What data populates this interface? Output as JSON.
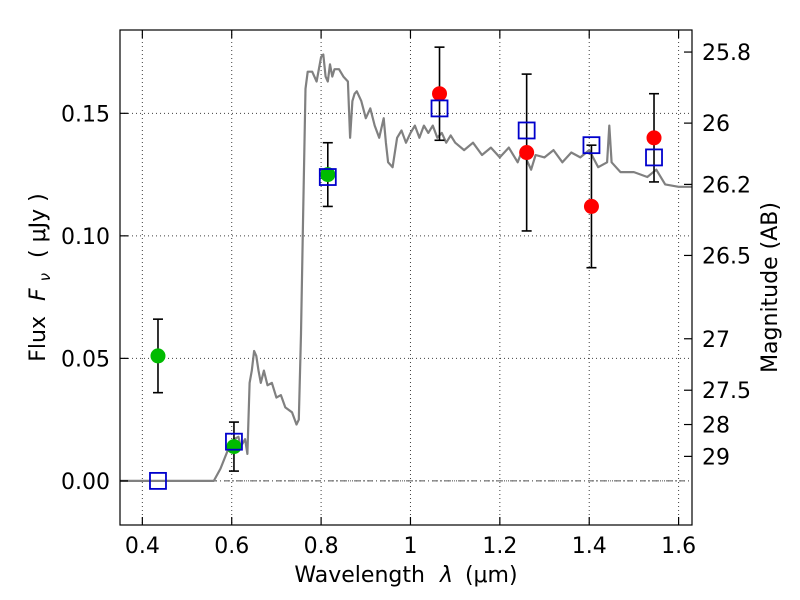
{
  "chart_data": {
    "type": "scatter",
    "title": "",
    "xlabel_text": "Wavelength",
    "xlabel_symbol": "λ",
    "xlabel_unit": "(μm)",
    "ylabel_text": "Flux",
    "ylabel_symbol": "F",
    "ylabel_subscript": "ν",
    "ylabel_unit": "( μJy )",
    "y2label": "Magnitude (AB)",
    "xlim": [
      0.35,
      1.63
    ],
    "ylim": [
      -0.018,
      0.184
    ],
    "grid": true,
    "x_ticks": [
      0.4,
      0.6,
      0.8,
      1.0,
      1.2,
      1.4,
      1.6
    ],
    "x_tick_labels": [
      "0.4",
      "0.6",
      "0.8",
      "1",
      "1.2",
      "1.4",
      "1.6"
    ],
    "y_ticks": [
      0.0,
      0.05,
      0.1,
      0.15
    ],
    "y_tick_labels": [
      "0.00",
      "0.05",
      "0.10",
      "0.15"
    ],
    "y2_ticks": [
      {
        "label": "25.8",
        "flux": 0.175
      },
      {
        "label": "26",
        "flux": 0.146
      },
      {
        "label": "26.2",
        "flux": 0.121
      },
      {
        "label": "26.5",
        "flux": 0.092
      },
      {
        "label": "27",
        "flux": 0.058
      },
      {
        "label": "27.5",
        "flux": 0.037
      },
      {
        "label": "28",
        "flux": 0.023
      },
      {
        "label": "29",
        "flux": 0.01
      }
    ],
    "series": [
      {
        "marker": "line",
        "color": "#808080",
        "x": [
          0.35,
          0.56,
          0.575,
          0.59,
          0.605,
          0.615,
          0.62,
          0.63,
          0.635,
          0.64,
          0.645,
          0.65,
          0.655,
          0.66,
          0.665,
          0.672,
          0.68,
          0.69,
          0.7,
          0.71,
          0.72,
          0.735,
          0.745,
          0.75,
          0.755,
          0.76,
          0.765,
          0.77,
          0.78,
          0.79,
          0.8,
          0.805,
          0.81,
          0.815,
          0.82,
          0.825,
          0.83,
          0.84,
          0.85,
          0.86,
          0.865,
          0.87,
          0.875,
          0.88,
          0.89,
          0.9,
          0.91,
          0.92,
          0.93,
          0.94,
          0.945,
          0.95,
          0.96,
          0.97,
          0.98,
          0.99,
          1.0,
          1.01,
          1.02,
          1.03,
          1.04,
          1.05,
          1.06,
          1.07,
          1.08,
          1.09,
          1.1,
          1.12,
          1.14,
          1.16,
          1.18,
          1.2,
          1.22,
          1.24,
          1.25,
          1.26,
          1.27,
          1.28,
          1.3,
          1.32,
          1.34,
          1.36,
          1.38,
          1.4,
          1.42,
          1.44,
          1.445,
          1.45,
          1.46,
          1.47,
          1.5,
          1.53,
          1.55,
          1.57,
          1.6,
          1.63
        ],
        "y": [
          0.0,
          0.0,
          0.005,
          0.012,
          0.017,
          0.018,
          0.014,
          0.017,
          0.011,
          0.04,
          0.045,
          0.053,
          0.051,
          0.045,
          0.04,
          0.045,
          0.039,
          0.04,
          0.034,
          0.035,
          0.03,
          0.028,
          0.023,
          0.025,
          0.06,
          0.11,
          0.16,
          0.167,
          0.167,
          0.163,
          0.173,
          0.174,
          0.165,
          0.163,
          0.17,
          0.165,
          0.168,
          0.168,
          0.165,
          0.163,
          0.14,
          0.155,
          0.158,
          0.159,
          0.155,
          0.148,
          0.152,
          0.145,
          0.14,
          0.148,
          0.138,
          0.13,
          0.128,
          0.14,
          0.143,
          0.138,
          0.142,
          0.145,
          0.14,
          0.145,
          0.142,
          0.145,
          0.14,
          0.142,
          0.138,
          0.141,
          0.138,
          0.135,
          0.138,
          0.133,
          0.136,
          0.132,
          0.136,
          0.13,
          0.135,
          0.131,
          0.127,
          0.133,
          0.132,
          0.135,
          0.13,
          0.134,
          0.132,
          0.135,
          0.128,
          0.13,
          0.145,
          0.13,
          0.128,
          0.126,
          0.126,
          0.124,
          0.127,
          0.121,
          0.12,
          0.12
        ]
      },
      {
        "marker": "circle",
        "color": "#00bb00",
        "x": [
          0.435,
          0.605,
          0.815
        ],
        "y": [
          0.051,
          0.014,
          0.125
        ],
        "yerr": [
          0.015,
          0.01,
          0.013
        ]
      },
      {
        "marker": "circle",
        "color": "#ff0000",
        "x": [
          1.065,
          1.26,
          1.405,
          1.545
        ],
        "y": [
          0.158,
          0.134,
          0.112,
          0.14
        ],
        "yerr": [
          0.019,
          0.032,
          0.025,
          0.018
        ]
      },
      {
        "marker": "square",
        "color": "#0000cc",
        "x": [
          0.435,
          0.605,
          0.815,
          1.065,
          1.26,
          1.405,
          1.545
        ],
        "y": [
          0.0,
          0.016,
          0.124,
          0.152,
          0.143,
          0.137,
          0.132
        ]
      }
    ]
  }
}
